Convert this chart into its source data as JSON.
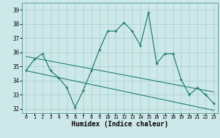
{
  "x": [
    0,
    1,
    2,
    3,
    4,
    5,
    6,
    7,
    8,
    9,
    10,
    11,
    12,
    13,
    14,
    15,
    16,
    17,
    18,
    19,
    20,
    21,
    22,
    23
  ],
  "y_main": [
    34.7,
    35.5,
    35.9,
    34.7,
    34.2,
    33.5,
    32.1,
    33.3,
    34.7,
    36.2,
    37.5,
    37.5,
    38.1,
    37.5,
    36.5,
    38.8,
    35.2,
    35.9,
    35.9,
    34.1,
    33.0,
    33.5,
    33.0,
    32.4
  ],
  "y_line2": [
    34.7,
    35.5,
    35.9,
    34.8,
    34.4,
    33.5,
    32.1,
    33.4,
    34.8,
    36.2,
    null,
    null,
    null,
    null,
    null,
    null,
    null,
    null,
    null,
    null,
    null,
    null,
    null,
    null
  ],
  "line_color": "#1a7a6e",
  "bg_color": "#cce8e8",
  "grid_color": "#aacfcf",
  "xlabel": "Humidex (Indice chaleur)",
  "xlabel_fontsize": 7,
  "ylabel_ticks": [
    32,
    33,
    34,
    35,
    36,
    37,
    38,
    39
  ],
  "xtick_labels": [
    "0",
    "1",
    "2",
    "3",
    "4",
    "5",
    "6",
    "7",
    "8",
    "9",
    "10",
    "11",
    "12",
    "13",
    "14",
    "15",
    "16",
    "17",
    "18",
    "19",
    "20",
    "21",
    "22",
    "23"
  ],
  "ylim": [
    31.7,
    39.5
  ],
  "xlim": [
    -0.5,
    23.5
  ],
  "trend1_x": [
    0,
    23
  ],
  "trend1_y": [
    35.7,
    33.2
  ],
  "trend2_x": [
    0,
    23
  ],
  "trend2_y": [
    34.7,
    31.9
  ]
}
